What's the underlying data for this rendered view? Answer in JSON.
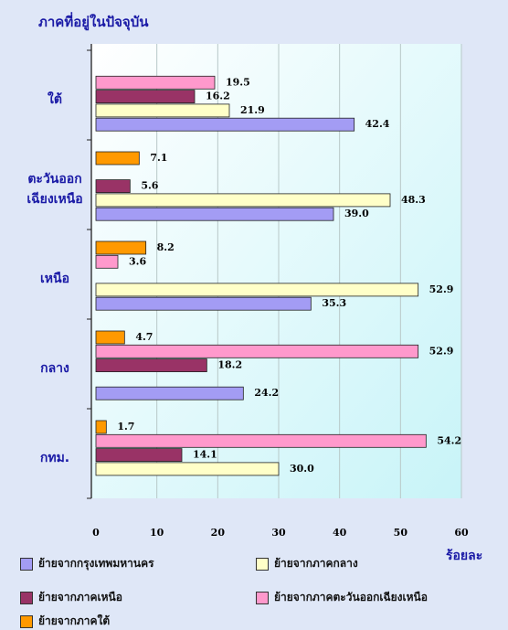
{
  "chart_data": {
    "type": "bar",
    "orientation": "horizontal",
    "title": "ภาคที่อยู่ในปัจจุบัน",
    "x_label": "ร้อยละ",
    "categories": [
      "ใต้",
      "ตะวันออก\nเฉียงเหนือ",
      "เหนือ",
      "กลาง",
      "กทม."
    ],
    "xlim": [
      0,
      60
    ],
    "xticks": [
      0,
      10,
      20,
      30,
      40,
      50,
      60
    ],
    "grid": true,
    "legend": "bottom",
    "series": [
      {
        "name": "ย้ายจากกรุงเทพมหานคร",
        "color": "#a39cf4",
        "values": [
          42.4,
          39.0,
          35.3,
          24.2,
          null
        ],
        "value_labels": [
          "42.4",
          "39.0",
          "35.3",
          "24.2",
          null
        ]
      },
      {
        "name": "ย้ายจากภาคกลาง",
        "color": "#ffffc8",
        "values": [
          21.9,
          48.3,
          52.9,
          null,
          30.0
        ],
        "value_labels": [
          "21.9",
          "48.3",
          "52.9",
          null,
          "30.0"
        ]
      },
      {
        "name": "ย้ายจากภาคเหนือ",
        "color": "#993366",
        "values": [
          16.2,
          5.6,
          null,
          18.2,
          14.1
        ],
        "value_labels": [
          "16.2",
          "5.6",
          null,
          "18.2",
          "14.1"
        ]
      },
      {
        "name": "ย้ายจากภาคตะวันออกเฉียงเหนือ",
        "color": "#ff99cc",
        "values": [
          19.5,
          null,
          3.6,
          52.9,
          54.2
        ],
        "value_labels": [
          "19.5",
          null,
          "3.6",
          "52.9",
          "54.2"
        ]
      },
      {
        "name": "ย้ายจากภาคใต้",
        "color": "#ff9900",
        "values": [
          null,
          7.1,
          8.2,
          4.7,
          1.7
        ],
        "value_labels": [
          null,
          "7.1",
          "8.2",
          "4.7",
          "1.7"
        ]
      }
    ]
  }
}
